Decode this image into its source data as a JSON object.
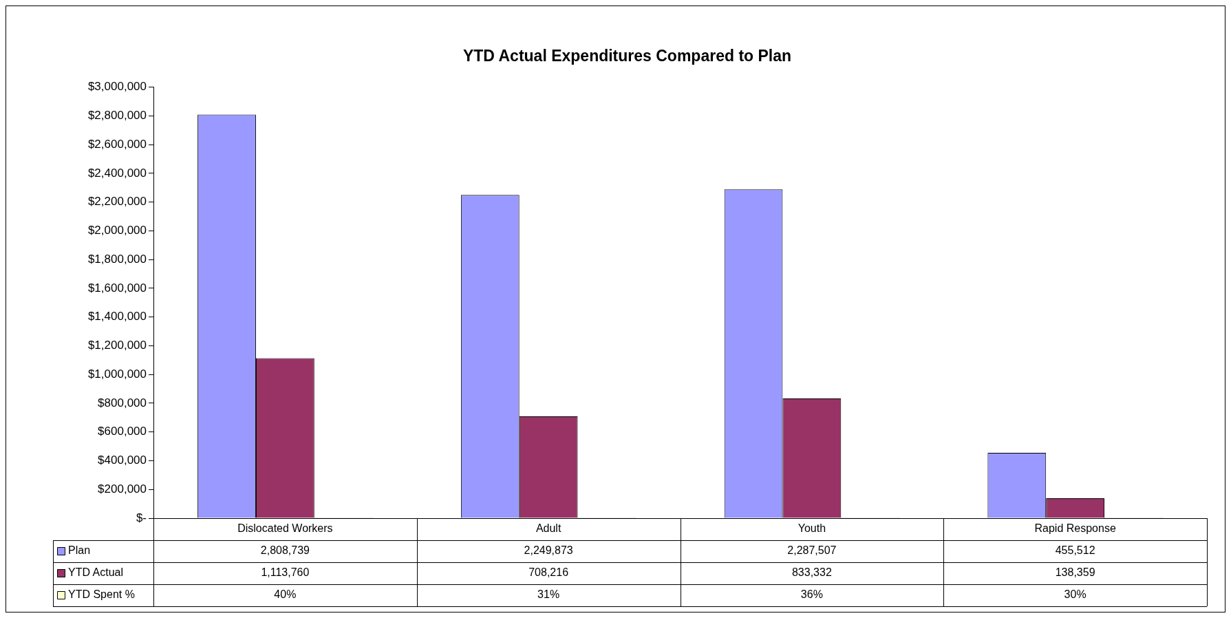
{
  "chart_data": {
    "type": "bar",
    "title": "YTD Actual Expenditures Compared to Plan",
    "categories": [
      "Dislocated Workers",
      "Adult",
      "Youth",
      "Rapid Response"
    ],
    "series": [
      {
        "name": "Plan",
        "color": "#9999ff",
        "values": [
          2808739,
          2249873,
          2287507,
          455512
        ],
        "value_labels": [
          "2,808,739",
          "2,249,873",
          "2,287,507",
          "455,512"
        ]
      },
      {
        "name": "YTD Actual",
        "color": "#993366",
        "values": [
          1113760,
          708216,
          833332,
          138359
        ],
        "value_labels": [
          "1,113,760",
          "708,216",
          "833,332",
          "138,359"
        ]
      },
      {
        "name": "YTD Spent %",
        "color": "#ffffcc",
        "values": [
          0.4,
          0.31,
          0.36,
          0.3
        ],
        "value_labels": [
          "40%",
          "31%",
          "36%",
          "30%"
        ]
      }
    ],
    "ylim": [
      0,
      3000000
    ],
    "yticks": [
      {
        "value": 0,
        "label": "$-"
      },
      {
        "value": 200000,
        "label": "$200,000"
      },
      {
        "value": 400000,
        "label": "$400,000"
      },
      {
        "value": 600000,
        "label": "$600,000"
      },
      {
        "value": 800000,
        "label": "$800,000"
      },
      {
        "value": 1000000,
        "label": "$1,000,000"
      },
      {
        "value": 1200000,
        "label": "$1,200,000"
      },
      {
        "value": 1400000,
        "label": "$1,400,000"
      },
      {
        "value": 1600000,
        "label": "$1,600,000"
      },
      {
        "value": 1800000,
        "label": "$1,800,000"
      },
      {
        "value": 2000000,
        "label": "$2,000,000"
      },
      {
        "value": 2200000,
        "label": "$2,200,000"
      },
      {
        "value": 2400000,
        "label": "$2,400,000"
      },
      {
        "value": 2600000,
        "label": "$2,600,000"
      },
      {
        "value": 2800000,
        "label": "$2,800,000"
      },
      {
        "value": 3000000,
        "label": "$3,000,000"
      }
    ],
    "grid": false,
    "legend": "bottom left"
  }
}
